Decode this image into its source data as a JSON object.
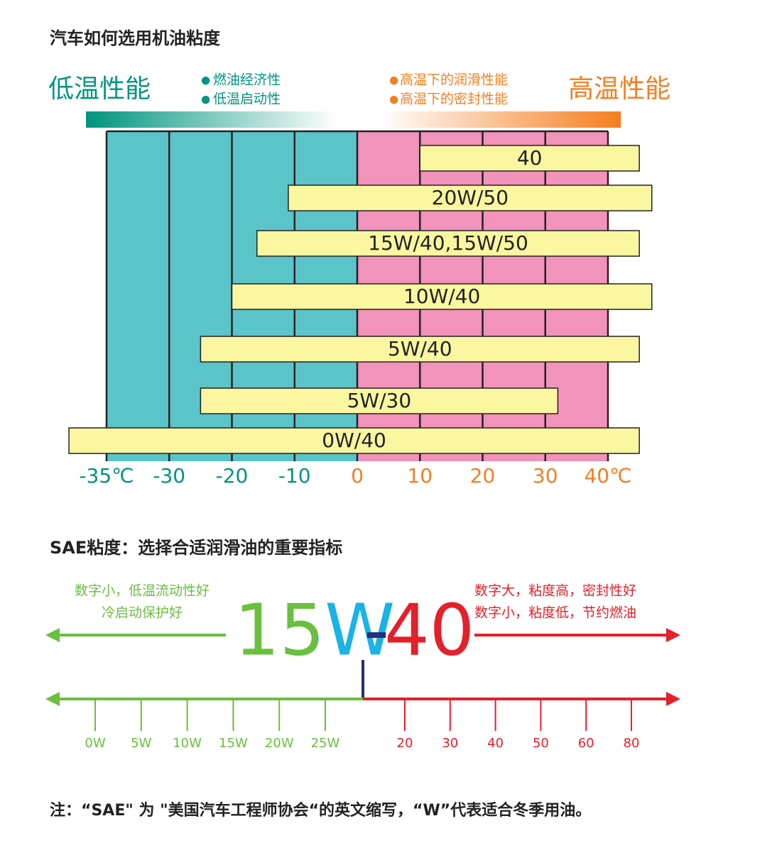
{
  "title": "汽车如何选用机油粘度",
  "top_chart": {
    "low_label": "低温性能",
    "high_label": "高温性能",
    "low_notes": [
      "燃油经济性",
      "低温启动性"
    ],
    "high_notes": [
      "高温下的润滑性能",
      "高温下的密封性能"
    ],
    "xticks": [
      {
        "value": -35,
        "label": "-35℃"
      },
      -30,
      -20,
      -10,
      0,
      10,
      20,
      30,
      {
        "value": 40,
        "label": "40℃"
      }
    ],
    "bars": [
      {
        "label": "40",
        "range": [
          10,
          45
        ]
      },
      {
        "label": "20W/50",
        "range": [
          -11,
          47
        ]
      },
      {
        "label": "15W/40,15W/50",
        "range": [
          -16,
          45
        ]
      },
      {
        "label": "10W/40",
        "range": [
          -20,
          47
        ]
      },
      {
        "label": "5W/40",
        "range": [
          -25,
          45
        ]
      },
      {
        "label": "5W/30",
        "range": [
          -25,
          32
        ]
      },
      {
        "label": "0W/40",
        "range": [
          -38,
          45
        ]
      }
    ]
  },
  "sae": {
    "title": "SAE粘度：选择合适润滑油的重要指标",
    "left_notes": [
      "数字小，低温流动性好",
      "冷启动保护好"
    ],
    "right_notes": [
      "数字大，粘度高，密封性好",
      "数字小，粘度低，节约燃油"
    ],
    "code": {
      "winter": "15W",
      "dash": "-",
      "summer": "40"
    },
    "winter_scale": [
      "0W",
      "5W",
      "10W",
      "15W",
      "20W",
      "25W"
    ],
    "summer_scale": [
      "20",
      "30",
      "40",
      "50",
      "60",
      "80"
    ]
  },
  "note": "注：“SAE\" 为 \"美国汽车工程师协会“的英文缩写，“W”代表适合冬季用油。"
}
